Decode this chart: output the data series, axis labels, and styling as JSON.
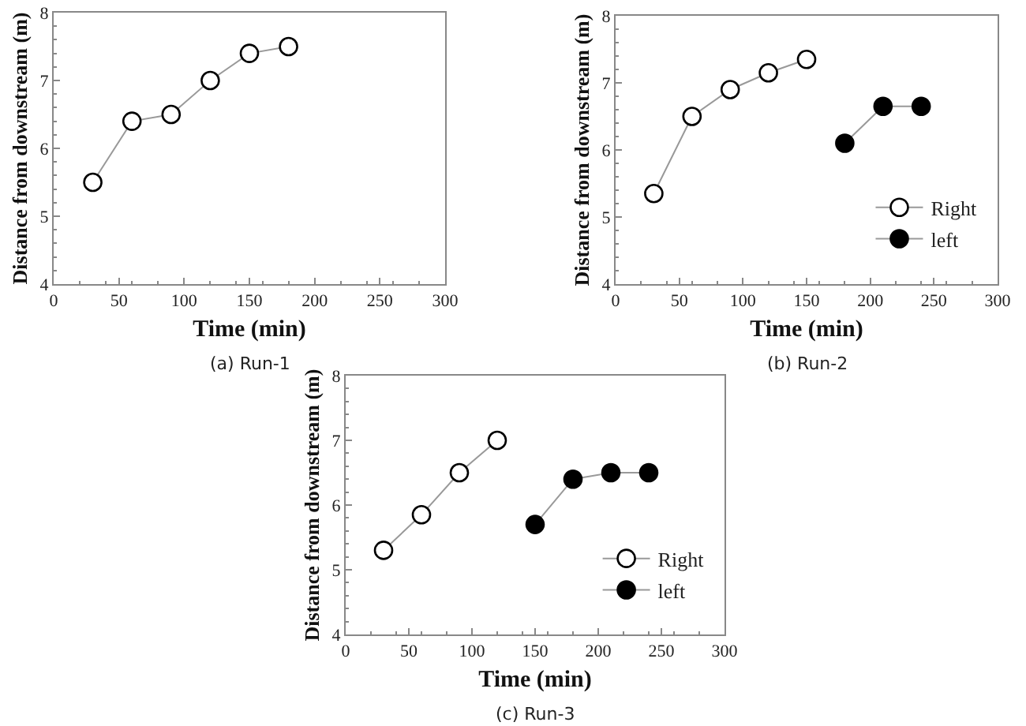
{
  "chart_data": [
    {
      "type": "line",
      "xlabel": "Time (min)",
      "ylabel": "Distance from downstream (m)",
      "annotations": [
        "(a) Run-1"
      ],
      "xlim": [
        0,
        300
      ],
      "xticks": [
        0,
        50,
        100,
        150,
        200,
        250,
        300
      ],
      "ylim": [
        4,
        8
      ],
      "yticks": [
        4,
        5,
        6,
        7,
        8
      ],
      "legend": false,
      "marker": "circle",
      "line_style": "solid",
      "series": [
        {
          "color": "#ffffff",
          "x": [
            30,
            60,
            90,
            120,
            150,
            180
          ],
          "values": [
            5.5,
            6.4,
            6.5,
            7.0,
            7.4,
            7.5
          ]
        }
      ]
    },
    {
      "type": "line",
      "xlabel": "Time (min)",
      "ylabel": "Distance from downstream (m)",
      "annotations": [
        "(b) Run-2"
      ],
      "xlim": [
        0,
        300
      ],
      "xticks": [
        0,
        50,
        100,
        150,
        200,
        250,
        300
      ],
      "ylim": [
        4,
        8
      ],
      "yticks": [
        4,
        5,
        6,
        7,
        8
      ],
      "legend": "bottom right",
      "marker": "circle",
      "line_style": "solid",
      "series": [
        {
          "name": "Right",
          "color": "#ffffff",
          "x": [
            30,
            60,
            90,
            120,
            150
          ],
          "values": [
            5.35,
            6.5,
            6.9,
            7.15,
            7.35
          ]
        },
        {
          "name": "left",
          "color": "#000000",
          "x": [
            180,
            210,
            240
          ],
          "values": [
            6.1,
            6.65,
            6.65
          ]
        }
      ]
    },
    {
      "type": "line",
      "xlabel": "Time (min)",
      "ylabel": "Distance from downstream (m)",
      "annotations": [
        "(c) Run-3"
      ],
      "xlim": [
        0,
        300
      ],
      "xticks": [
        0,
        50,
        100,
        150,
        200,
        250,
        300
      ],
      "ylim": [
        4,
        8
      ],
      "yticks": [
        4,
        5,
        6,
        7,
        8
      ],
      "legend": "bottom right",
      "marker": "circle",
      "line_style": "solid",
      "series": [
        {
          "name": "Right",
          "color": "#ffffff",
          "x": [
            30,
            60,
            90,
            120
          ],
          "values": [
            5.3,
            5.85,
            6.5,
            7.0
          ]
        },
        {
          "name": "left",
          "color": "#000000",
          "x": [
            150,
            180,
            210,
            240
          ],
          "values": [
            5.7,
            6.4,
            6.5,
            6.5
          ]
        }
      ]
    }
  ]
}
